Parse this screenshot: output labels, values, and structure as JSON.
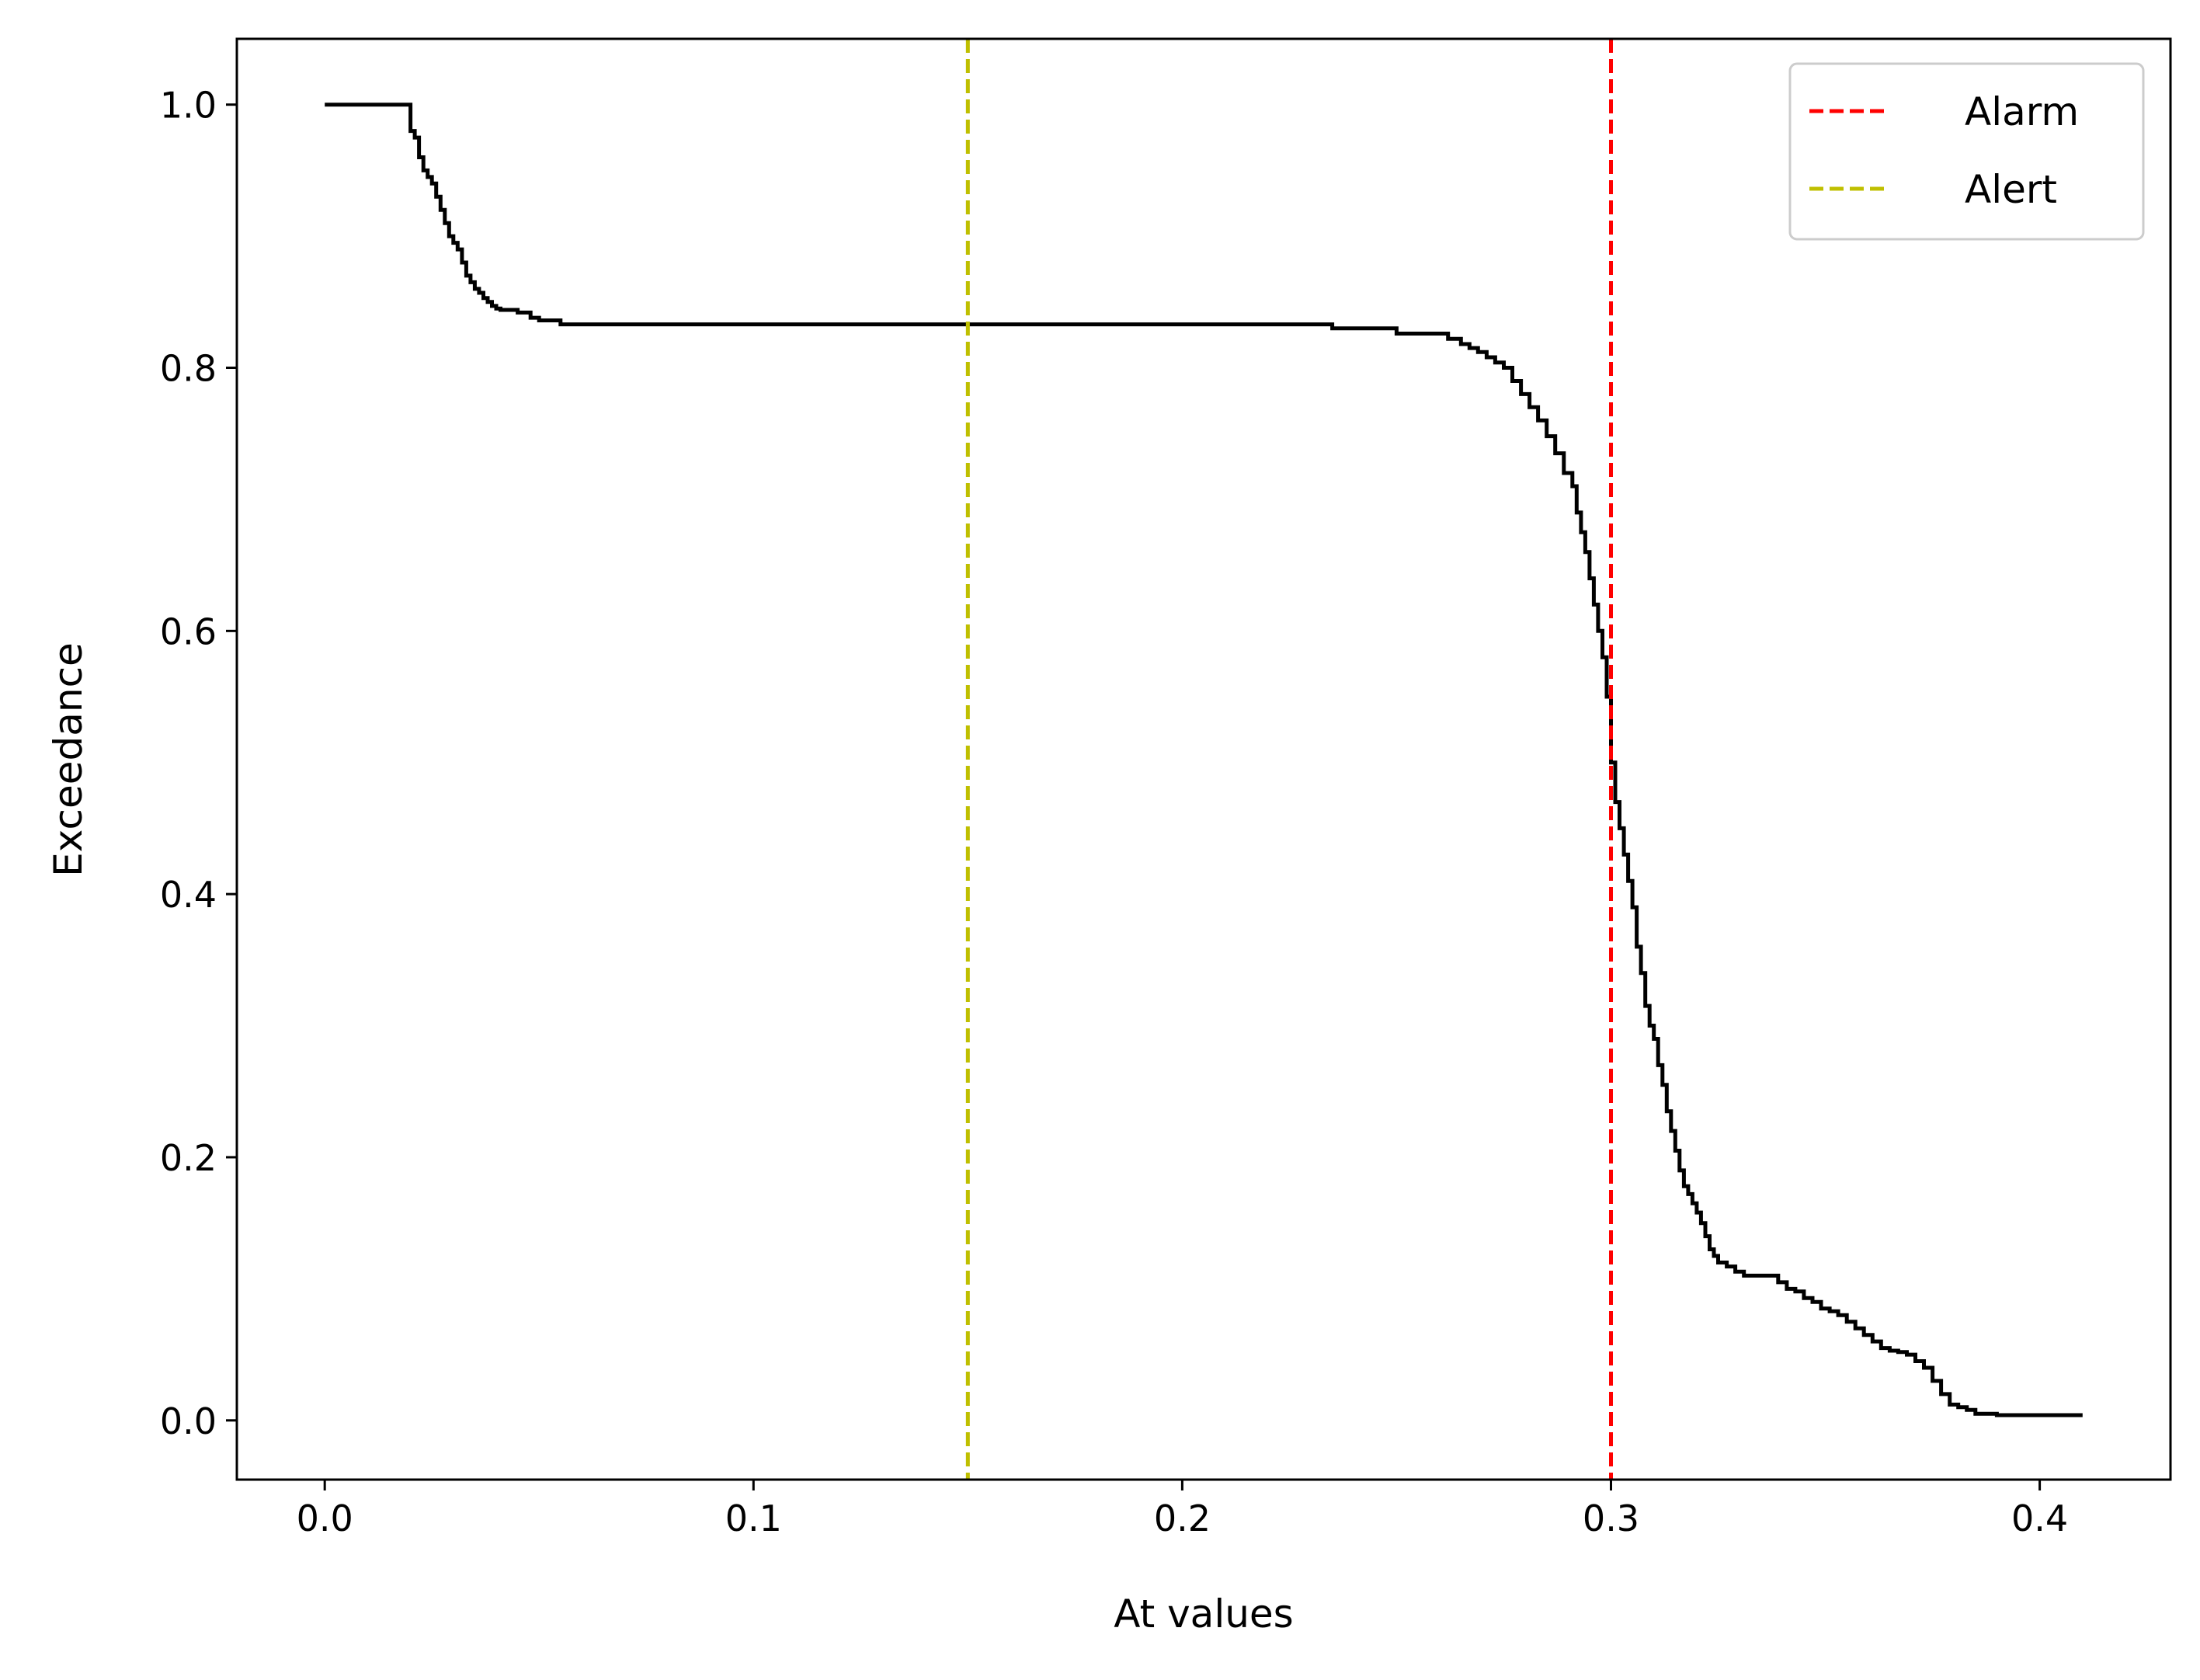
{
  "chart_data": {
    "type": "line",
    "xlabel": "At values",
    "ylabel": "Exceedance",
    "xlim": [
      -0.0205,
      0.4305
    ],
    "ylim": [
      -0.045,
      1.05
    ],
    "xticks": [
      0.0,
      0.1,
      0.2,
      0.3,
      0.4
    ],
    "xtick_labels": [
      "0.0",
      "0.1",
      "0.2",
      "0.3",
      "0.4"
    ],
    "yticks": [
      0.0,
      0.2,
      0.4,
      0.6,
      0.8,
      1.0
    ],
    "ytick_labels": [
      "0.0",
      "0.2",
      "0.4",
      "0.6",
      "0.8",
      "1.0"
    ],
    "grid": false,
    "legend_placement": "top-right",
    "series": [
      {
        "color": "#000000",
        "style": "step",
        "x": [
          0.0,
          0.02,
          0.021,
          0.022,
          0.023,
          0.024,
          0.025,
          0.026,
          0.027,
          0.028,
          0.029,
          0.03,
          0.031,
          0.032,
          0.033,
          0.034,
          0.035,
          0.036,
          0.037,
          0.038,
          0.039,
          0.04,
          0.041,
          0.042,
          0.045,
          0.048,
          0.05,
          0.055,
          0.1,
          0.15,
          0.2,
          0.235,
          0.25,
          0.262,
          0.265,
          0.267,
          0.269,
          0.271,
          0.273,
          0.275,
          0.277,
          0.279,
          0.281,
          0.283,
          0.285,
          0.287,
          0.289,
          0.291,
          0.292,
          0.293,
          0.294,
          0.295,
          0.296,
          0.297,
          0.298,
          0.299,
          0.3,
          0.301,
          0.302,
          0.303,
          0.304,
          0.305,
          0.306,
          0.307,
          0.308,
          0.309,
          0.31,
          0.311,
          0.312,
          0.313,
          0.314,
          0.315,
          0.316,
          0.317,
          0.318,
          0.319,
          0.32,
          0.321,
          0.322,
          0.323,
          0.324,
          0.325,
          0.327,
          0.329,
          0.331,
          0.333,
          0.336,
          0.339,
          0.341,
          0.343,
          0.345,
          0.347,
          0.349,
          0.351,
          0.353,
          0.355,
          0.357,
          0.359,
          0.361,
          0.363,
          0.365,
          0.367,
          0.369,
          0.371,
          0.373,
          0.375,
          0.377,
          0.379,
          0.381,
          0.383,
          0.385,
          0.39,
          0.41
        ],
        "y": [
          1.0,
          0.98,
          0.975,
          0.96,
          0.95,
          0.945,
          0.94,
          0.93,
          0.92,
          0.91,
          0.9,
          0.895,
          0.89,
          0.88,
          0.87,
          0.865,
          0.86,
          0.857,
          0.853,
          0.85,
          0.847,
          0.845,
          0.844,
          0.844,
          0.842,
          0.838,
          0.836,
          0.833,
          0.833,
          0.833,
          0.833,
          0.83,
          0.826,
          0.822,
          0.818,
          0.815,
          0.812,
          0.808,
          0.804,
          0.8,
          0.79,
          0.78,
          0.77,
          0.76,
          0.748,
          0.735,
          0.72,
          0.71,
          0.69,
          0.675,
          0.66,
          0.64,
          0.62,
          0.6,
          0.58,
          0.55,
          0.5,
          0.47,
          0.45,
          0.43,
          0.41,
          0.39,
          0.36,
          0.34,
          0.315,
          0.3,
          0.29,
          0.27,
          0.255,
          0.235,
          0.22,
          0.205,
          0.19,
          0.178,
          0.172,
          0.165,
          0.158,
          0.15,
          0.14,
          0.13,
          0.125,
          0.12,
          0.117,
          0.113,
          0.11,
          0.11,
          0.11,
          0.105,
          0.1,
          0.098,
          0.093,
          0.09,
          0.085,
          0.083,
          0.08,
          0.075,
          0.07,
          0.065,
          0.06,
          0.055,
          0.053,
          0.052,
          0.05,
          0.045,
          0.04,
          0.03,
          0.02,
          0.012,
          0.01,
          0.008,
          0.005,
          0.004,
          0.004
        ]
      }
    ],
    "vlines": [
      {
        "x": 0.3,
        "label": "Alarm",
        "color": "#ff0000",
        "style": "dashed"
      },
      {
        "x": 0.15,
        "label": "Alert",
        "color": "#bfbf00",
        "style": "dashed"
      }
    ]
  }
}
